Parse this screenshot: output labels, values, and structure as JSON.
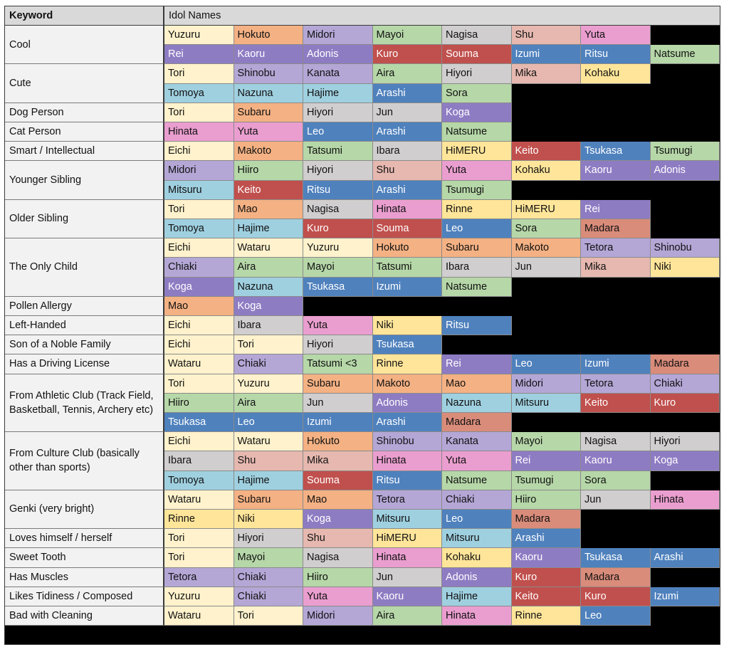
{
  "header": {
    "keyword": "Keyword",
    "names": "Idol Names"
  },
  "colors": {
    "Yuzuru": "#fff2cc",
    "Hokuto": "#f4b183",
    "Midori": "#b4a7d6",
    "Mayoi": "#b6d7a8",
    "Nagisa": "#d0cece",
    "Shu": "#e6b8af",
    "Yuta": "#ea9ecf",
    "Rei": "#8e7cc3",
    "Kaoru": "#8e7cc3",
    "Adonis": "#8e7cc3",
    "Kuro": "#c0504d",
    "Souma": "#c0504d",
    "Izumi": "#4f81bd",
    "Ritsu": "#4f81bd",
    "Natsume": "#b6d7a8",
    "Tori": "#fff2cc",
    "Shinobu": "#b4a7d6",
    "Kanata": "#b4a7d6",
    "Aira": "#b6d7a8",
    "Hiyori": "#d0cece",
    "Mika": "#e6b8af",
    "Kohaku": "#ffe599",
    "Tomoya": "#9fd0e0",
    "Nazuna": "#9fd0e0",
    "Hajime": "#9fd0e0",
    "Arashi": "#4f81bd",
    "Sora": "#b6d7a8",
    "Subaru": "#f4b183",
    "Jun": "#d0cece",
    "Koga": "#8e7cc3",
    "Hinata": "#ea9ecf",
    "Leo": "#4f81bd",
    "Eichi": "#fff2cc",
    "Makoto": "#f4b183",
    "Tatsumi": "#b6d7a8",
    "Ibara": "#d0cece",
    "HiMERU": "#ffe599",
    "Keito": "#c0504d",
    "Tsukasa": "#4f81bd",
    "Tsumugi": "#b6d7a8",
    "Hiiro": "#b6d7a8",
    "Mitsuru": "#9fd0e0",
    "Mao": "#f4b183",
    "Rinne": "#ffe599",
    "Madara": "#d98c7a",
    "Wataru": "#fff2cc",
    "Tetora": "#b4a7d6",
    "Chiaki": "#b4a7d6",
    "Niki": "#ffe599",
    "Tatsumi <3": "#b6d7a8"
  },
  "light_text": [
    "Rei",
    "Kaoru",
    "Adonis",
    "Kuro",
    "Souma",
    "Izumi",
    "Ritsu",
    "Arashi",
    "Koga",
    "Leo",
    "Keito",
    "Tsukasa"
  ],
  "rows": [
    {
      "keyword": "Cool",
      "lines": [
        [
          "Yuzuru",
          "Hokuto",
          "Midori",
          "Mayoi",
          "Nagisa",
          "Shu",
          "Yuta"
        ],
        [
          "Rei",
          "Kaoru",
          "Adonis",
          "Kuro",
          "Souma",
          "Izumi",
          "Ritsu",
          "Natsume"
        ]
      ]
    },
    {
      "keyword": "Cute",
      "lines": [
        [
          "Tori",
          "Shinobu",
          "Kanata",
          "Aira",
          "Hiyori",
          "Mika",
          "Kohaku"
        ],
        [
          "Tomoya",
          "Nazuna",
          "Hajime",
          "Arashi",
          "Sora"
        ]
      ]
    },
    {
      "keyword": "Dog Person",
      "lines": [
        [
          "Tori",
          "Subaru",
          "Hiyori",
          "Jun",
          "Koga"
        ]
      ]
    },
    {
      "keyword": "Cat Person",
      "lines": [
        [
          "Hinata",
          "Yuta",
          "Leo",
          "Arashi",
          "Natsume"
        ]
      ]
    },
    {
      "keyword": "Smart / Intellectual",
      "lines": [
        [
          "Eichi",
          "Makoto",
          "Tatsumi",
          "Ibara",
          "HiMERU",
          "Keito",
          "Tsukasa",
          "Tsumugi"
        ]
      ]
    },
    {
      "keyword": "Younger Sibling",
      "lines": [
        [
          "Midori",
          "Hiiro",
          "Hiyori",
          "Shu",
          "Yuta",
          "Kohaku",
          "Kaoru",
          "Adonis"
        ],
        [
          "Mitsuru",
          "Keito",
          "Ritsu",
          "Arashi",
          "Tsumugi"
        ]
      ]
    },
    {
      "keyword": "Older Sibling",
      "lines": [
        [
          "Tori",
          "Mao",
          "Nagisa",
          "Hinata",
          "Rinne",
          "HiMERU",
          "Rei"
        ],
        [
          "Tomoya",
          "Hajime",
          "Kuro",
          "Souma",
          "Leo",
          "Sora",
          "Madara"
        ]
      ]
    },
    {
      "keyword": "The Only Child",
      "lines": [
        [
          "Eichi",
          "Wataru",
          "Yuzuru",
          "Hokuto",
          "Subaru",
          "Makoto",
          "Tetora",
          "Shinobu"
        ],
        [
          "Chiaki",
          "Aira",
          "Mayoi",
          "Tatsumi",
          "Ibara",
          "Jun",
          "Mika",
          "Niki"
        ],
        [
          "Koga",
          "Nazuna",
          "Tsukasa",
          "Izumi",
          "Natsume"
        ]
      ]
    },
    {
      "keyword": "Pollen Allergy",
      "lines": [
        [
          "Mao",
          "Koga"
        ]
      ]
    },
    {
      "keyword": "Left-Handed",
      "lines": [
        [
          "Eichi",
          "Ibara",
          "Yuta",
          "Niki",
          "Ritsu"
        ]
      ]
    },
    {
      "keyword": "Son of a Noble Family",
      "lines": [
        [
          "Eichi",
          "Tori",
          "Hiyori",
          "Tsukasa"
        ]
      ]
    },
    {
      "keyword": "Has a Driving License",
      "lines": [
        [
          "Wataru",
          "Chiaki",
          "Tatsumi <3",
          "Rinne",
          "Rei",
          "Leo",
          "Izumi",
          "Madara"
        ]
      ]
    },
    {
      "keyword": "From Athletic Club (Track Field, Basketball, Tennis, Archery etc)",
      "lines": [
        [
          "Tori",
          "Yuzuru",
          "Subaru",
          "Makoto",
          "Mao",
          "Midori",
          "Tetora",
          "Chiaki"
        ],
        [
          "Hiiro",
          "Aira",
          "Jun",
          "Adonis",
          "Nazuna",
          "Mitsuru",
          "Keito",
          "Kuro"
        ],
        [
          "Tsukasa",
          "Leo",
          "Izumi",
          "Arashi",
          "Madara"
        ]
      ]
    },
    {
      "keyword": "From Culture Club (basically other than sports)",
      "lines": [
        [
          "Eichi",
          "Wataru",
          "Hokuto",
          "Shinobu",
          "Kanata",
          "Mayoi",
          "Nagisa",
          "Hiyori"
        ],
        [
          "Ibara",
          "Shu",
          "Mika",
          "Hinata",
          "Yuta",
          "Rei",
          "Kaoru",
          "Koga"
        ],
        [
          "Tomoya",
          "Hajime",
          "Souma",
          "Ritsu",
          "Natsume",
          "Tsumugi",
          "Sora"
        ]
      ]
    },
    {
      "keyword": "Genki (very bright)",
      "lines": [
        [
          "Wataru",
          "Subaru",
          "Mao",
          "Tetora",
          "Chiaki",
          "Hiiro",
          "Jun",
          "Hinata"
        ],
        [
          "Rinne",
          "Niki",
          "Koga",
          "Mitsuru",
          "Leo",
          "Madara"
        ]
      ]
    },
    {
      "keyword": "Loves himself / herself",
      "lines": [
        [
          "Tori",
          "Hiyori",
          "Shu",
          "HiMERU",
          "Mitsuru",
          "Arashi"
        ]
      ]
    },
    {
      "keyword": "Sweet Tooth",
      "lines": [
        [
          "Tori",
          "Mayoi",
          "Nagisa",
          "Hinata",
          "Kohaku",
          "Kaoru",
          "Tsukasa",
          "Arashi"
        ]
      ]
    },
    {
      "keyword": "Has Muscles",
      "lines": [
        [
          "Tetora",
          "Chiaki",
          "Hiiro",
          "Jun",
          "Adonis",
          "Kuro",
          "Madara"
        ]
      ]
    },
    {
      "keyword": "Likes Tidiness / Composed",
      "lines": [
        [
          "Yuzuru",
          "Chiaki",
          "Yuta",
          "Kaoru",
          "Hajime",
          "Keito",
          "Kuro",
          "Izumi"
        ]
      ]
    },
    {
      "keyword": "Bad with Cleaning",
      "lines": [
        [
          "Wataru",
          "Tori",
          "Midori",
          "Aira",
          "Hinata",
          "Rinne",
          "Leo"
        ]
      ]
    }
  ]
}
